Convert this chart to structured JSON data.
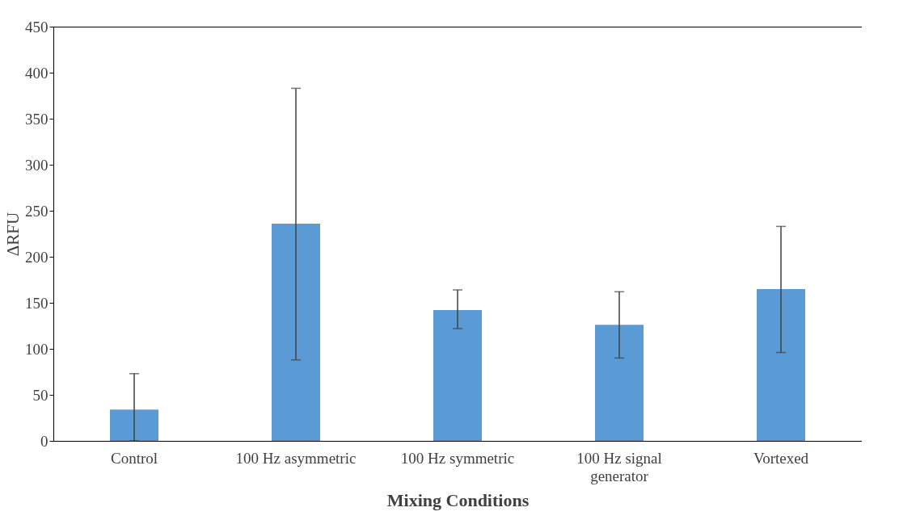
{
  "chart_data": {
    "type": "bar",
    "xlabel": "Mixing Conditions",
    "ylabel": "ΔRFU",
    "categories": [
      "Control",
      "100 Hz asymmetric",
      "100 Hz symmetric",
      "100 Hz signal generator",
      "Vortexed"
    ],
    "values": [
      34,
      236,
      142,
      126,
      165
    ],
    "errors": [
      [
        0,
        73
      ],
      [
        88,
        383
      ],
      [
        122,
        164
      ],
      [
        90,
        162
      ],
      [
        96,
        233
      ]
    ],
    "color": "#5b9bd5",
    "ylim": [
      0,
      450
    ],
    "yticks": [
      0,
      50,
      100,
      150,
      200,
      250,
      300,
      350,
      400,
      450
    ],
    "grid": false
  }
}
